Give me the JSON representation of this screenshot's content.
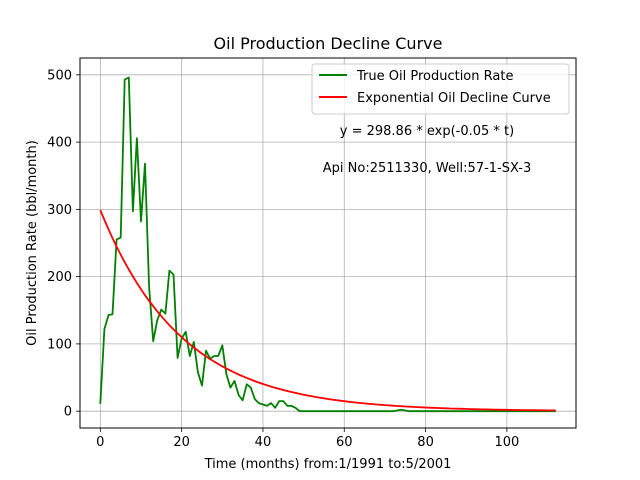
{
  "chart_data": {
    "type": "line",
    "title": "Oil Production Decline Curve",
    "xlabel": "Time (months) from:1/1991 to:5/2001",
    "ylabel": "Oil Production Rate (bbl/month)",
    "xlim": [
      -5,
      117
    ],
    "ylim": [
      -25,
      525
    ],
    "xticks": [
      0,
      20,
      40,
      60,
      80,
      100
    ],
    "yticks": [
      0,
      100,
      200,
      300,
      400,
      500
    ],
    "grid": true,
    "legend_position": "top-right",
    "annotations": [
      "y = 298.86 * exp(-0.05 * t)",
      "Api No:2511330, Well:57-1-SX-3"
    ],
    "series": [
      {
        "name": "True Oil Production Rate",
        "color": "#008000",
        "x": [
          0,
          1,
          2,
          3,
          4,
          5,
          6,
          7,
          8,
          9,
          10,
          11,
          12,
          13,
          14,
          15,
          16,
          17,
          18,
          19,
          20,
          21,
          22,
          23,
          24,
          25,
          26,
          27,
          28,
          29,
          30,
          31,
          32,
          33,
          34,
          35,
          36,
          37,
          38,
          39,
          40,
          41,
          42,
          43,
          44,
          45,
          46,
          47,
          48,
          49,
          50,
          55,
          60,
          65,
          70,
          72,
          74,
          76,
          80,
          85,
          90,
          95,
          100,
          105,
          110,
          112
        ],
        "y": [
          11,
          122,
          143,
          144,
          255,
          258,
          493,
          496,
          297,
          406,
          282,
          368,
          185,
          104,
          135,
          151,
          145,
          209,
          203,
          79,
          108,
          118,
          82,
          103,
          58,
          38,
          90,
          78,
          82,
          82,
          98,
          55,
          35,
          45,
          24,
          16,
          40,
          35,
          18,
          12,
          10,
          8,
          12,
          5,
          15,
          15,
          8,
          8,
          5,
          0,
          0,
          0,
          0,
          0,
          0,
          0,
          2,
          0,
          0,
          0,
          0,
          0,
          0,
          0,
          0,
          0
        ]
      },
      {
        "name": "Exponential Oil Decline Curve",
        "color": "#ff0000",
        "equation": {
          "a": 298.86,
          "b": -0.05
        },
        "x_range": [
          0,
          112
        ]
      }
    ]
  }
}
